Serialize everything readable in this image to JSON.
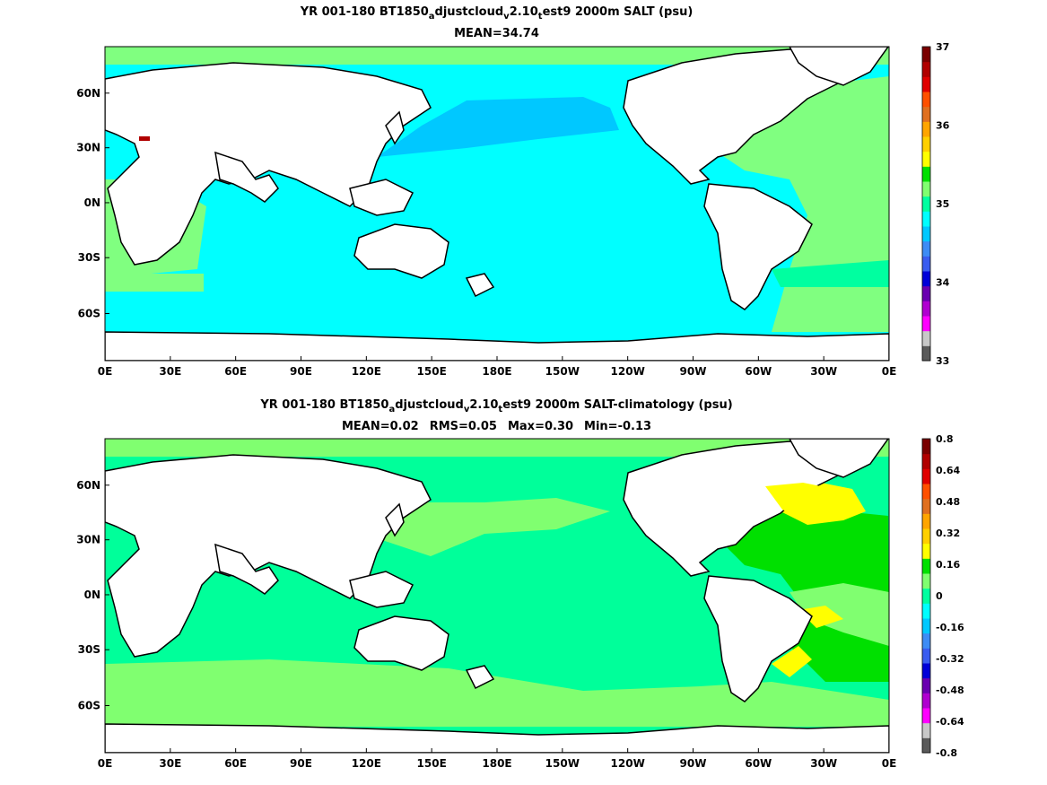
{
  "panels": [
    {
      "id": "top",
      "title_parts": [
        "YR 001-180 BT1850",
        "a",
        "djustcloud",
        "v",
        "2.10",
        "t",
        "est9 2000m SALT (psu)"
      ],
      "stats": [
        "MEAN=34.74"
      ],
      "colorbar": {
        "ticks": [
          "33",
          "34",
          "35",
          "36",
          "37"
        ],
        "colors": [
          "#5a5a5a",
          "#c8c8c8",
          "#ff00ff",
          "#b000d0",
          "#6a00b0",
          "#0000d8",
          "#3a5cf0",
          "#3d8cf5",
          "#00c8ff",
          "#00ffff",
          "#00ffa0",
          "#80ff70",
          "#00e000",
          "#ffff00",
          "#ffd000",
          "#ffa500",
          "#e07020",
          "#ff5000",
          "#e00000",
          "#b00000",
          "#7a0000"
        ]
      }
    },
    {
      "id": "bottom",
      "title_parts": [
        "YR 001-180 BT1850",
        "a",
        "djustcloud",
        "v",
        "2.10",
        "t",
        "est9 2000m SALT-climatology (psu)"
      ],
      "stats": [
        "MEAN=0.02",
        "RMS=0.05",
        "Max=0.30",
        "Min=-0.13"
      ],
      "colorbar": {
        "ticks": [
          "-0.8",
          "-0.64",
          "-0.48",
          "-0.32",
          "-0.16",
          "0",
          "0.16",
          "0.32",
          "0.48",
          "0.64",
          "0.8"
        ],
        "colors": [
          "#5a5a5a",
          "#c8c8c8",
          "#ff00ff",
          "#b000d0",
          "#6a00b0",
          "#0000d8",
          "#3a5cf0",
          "#3d8cf5",
          "#00c8ff",
          "#00ffff",
          "#00ffa0",
          "#80ff70",
          "#00e000",
          "#ffff00",
          "#ffd000",
          "#ffa500",
          "#e07020",
          "#ff5000",
          "#e00000",
          "#b00000",
          "#7a0000"
        ]
      }
    }
  ],
  "axes": {
    "x_ticks": [
      "0E",
      "30E",
      "60E",
      "90E",
      "120E",
      "150E",
      "180E",
      "150W",
      "120W",
      "90W",
      "60W",
      "30W",
      "0E"
    ],
    "y_ticks": [
      "60N",
      "30N",
      "0N",
      "30S",
      "60S"
    ]
  },
  "colors": {
    "land": "#ffffff",
    "coast": "#000000",
    "top_atlantic": "#80ff80",
    "top_pacific": "#00ffff",
    "top_np_blob": "#00c8ff",
    "top_indian": "#00ffff",
    "bot_base": "#00ff9a",
    "bot_southern": "#80ff70",
    "bot_green": "#00e000",
    "bot_yellow": "#ffff00",
    "bot_gold": "#ffd000"
  }
}
